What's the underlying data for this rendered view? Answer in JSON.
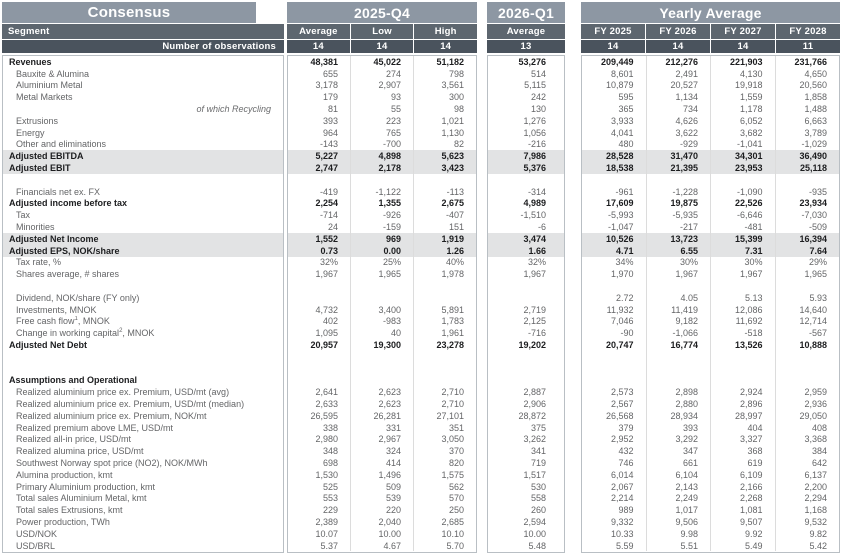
{
  "header": {
    "consensus_title": "Consensus",
    "segment_label": "Segment",
    "observations_label": "Number of observations",
    "groups": [
      {
        "title": "2025-Q4",
        "cols": [
          "Average",
          "Low",
          "High"
        ],
        "obs": [
          "14",
          "14",
          "14"
        ]
      },
      {
        "title": "2026-Q1",
        "cols": [
          "Average"
        ],
        "obs": [
          "13"
        ]
      },
      {
        "title": "Yearly Average",
        "cols": [
          "FY 2025",
          "FY 2026",
          "FY 2027",
          "FY 2028"
        ],
        "obs": [
          "14",
          "14",
          "14",
          "11"
        ]
      }
    ]
  },
  "colors": {
    "title_band": "#8d97a3",
    "sub_band": "#5d666f",
    "obs_band": "#4a535d",
    "highlight_row": "#e2e3e4",
    "panel_border": "#b9bfc4",
    "column_separator": "#dcdcdc",
    "normal_text": "#646567",
    "bold_text": "#1c1d1f"
  },
  "rows": [
    {
      "l": "Revenues",
      "s": "bold",
      "v": [
        "48,381",
        "45,022",
        "51,182",
        "53,276",
        "209,449",
        "212,276",
        "221,903",
        "231,766"
      ]
    },
    {
      "l": "Bauxite & Alumina",
      "s": "normal",
      "v": [
        "655",
        "274",
        "798",
        "514",
        "8,601",
        "2,491",
        "4,130",
        "4,650"
      ]
    },
    {
      "l": "Aluminium Metal",
      "s": "normal",
      "v": [
        "3,178",
        "2,907",
        "3,561",
        "5,115",
        "10,879",
        "20,527",
        "19,918",
        "20,560"
      ]
    },
    {
      "l": "Metal Markets",
      "s": "normal",
      "v": [
        "179",
        "93",
        "300",
        "242",
        "595",
        "1,134",
        "1,559",
        "1,858"
      ]
    },
    {
      "l": "of which Recycling",
      "s": "recycling",
      "v": [
        "81",
        "55",
        "98",
        "130",
        "365",
        "734",
        "1,178",
        "1,488"
      ]
    },
    {
      "l": "Extrusions",
      "s": "normal",
      "v": [
        "393",
        "223",
        "1,021",
        "1,276",
        "3,933",
        "4,626",
        "6,052",
        "6,663"
      ]
    },
    {
      "l": "Energy",
      "s": "normal",
      "v": [
        "964",
        "765",
        "1,130",
        "1,056",
        "4,041",
        "3,622",
        "3,682",
        "3,789"
      ]
    },
    {
      "l": "Other and eliminations",
      "s": "normal",
      "v": [
        "-143",
        "-700",
        "82",
        "-216",
        "480",
        "-929",
        "-1,041",
        "-1,029"
      ]
    },
    {
      "l": "Adjusted EBITDA",
      "s": "hl",
      "v": [
        "5,227",
        "4,898",
        "5,623",
        "7,986",
        "28,528",
        "31,470",
        "34,301",
        "36,490"
      ]
    },
    {
      "l": "Adjusted EBIT",
      "s": "hl",
      "v": [
        "2,747",
        "2,178",
        "3,423",
        "5,376",
        "18,538",
        "21,395",
        "23,953",
        "25,118"
      ]
    },
    {
      "s": "blank"
    },
    {
      "l": "Financials net ex. FX",
      "s": "normal",
      "v": [
        "-419",
        "-1,122",
        "-113",
        "-314",
        "-961",
        "-1,228",
        "-1,090",
        "-935"
      ]
    },
    {
      "l": "Adjusted income before tax",
      "s": "bold",
      "v": [
        "2,254",
        "1,355",
        "2,675",
        "4,989",
        "17,609",
        "19,875",
        "22,526",
        "23,934"
      ]
    },
    {
      "l": "Tax",
      "s": "normal",
      "v": [
        "-714",
        "-926",
        "-407",
        "-1,510",
        "-5,993",
        "-5,935",
        "-6,646",
        "-7,030"
      ]
    },
    {
      "l": "Minorities",
      "s": "normal",
      "v": [
        "24",
        "-159",
        "151",
        "-6",
        "-1,047",
        "-217",
        "-481",
        "-509"
      ]
    },
    {
      "l": "Adjusted Net Income",
      "s": "hl",
      "v": [
        "1,552",
        "969",
        "1,919",
        "3,474",
        "10,526",
        "13,723",
        "15,399",
        "16,394"
      ]
    },
    {
      "l": "Adjusted EPS, NOK/share",
      "s": "hl",
      "v": [
        "0.73",
        "0.00",
        "1.26",
        "1.66",
        "4.71",
        "6.55",
        "7.31",
        "7.64"
      ]
    },
    {
      "l": "Tax rate, %",
      "s": "normal",
      "v": [
        "32%",
        "25%",
        "40%",
        "32%",
        "34%",
        "30%",
        "30%",
        "29%"
      ]
    },
    {
      "l": "Shares average, # shares",
      "s": "normal",
      "v": [
        "1,967",
        "1,965",
        "1,978",
        "1,967",
        "1,970",
        "1,967",
        "1,967",
        "1,965"
      ]
    },
    {
      "s": "blank"
    },
    {
      "l": "Dividend, NOK/share (FY only)",
      "s": "normal",
      "v": [
        "",
        "",
        "",
        "",
        "2.72",
        "4.05",
        "5.13",
        "5.93"
      ]
    },
    {
      "l": "Investments, MNOK",
      "s": "normal",
      "v": [
        "4,732",
        "3,400",
        "5,891",
        "2,719",
        "11,932",
        "11,419",
        "12,086",
        "14,640"
      ]
    },
    {
      "l": "Free cash flow",
      "sup": "1",
      "suffix": ", MNOK",
      "s": "normal",
      "v": [
        "402",
        "-983",
        "1,783",
        "2,125",
        "7,046",
        "9,182",
        "11,692",
        "12,714"
      ]
    },
    {
      "l": "Change in working capital",
      "sup": "2",
      "suffix": ", MNOK",
      "s": "normal",
      "v": [
        "1,095",
        "40",
        "1,961",
        "-716",
        "-90",
        "-1,066",
        "-518",
        "-567"
      ]
    },
    {
      "l": "Adjusted Net Debt",
      "s": "bold",
      "v": [
        "20,957",
        "19,300",
        "23,278",
        "19,202",
        "20,747",
        "16,774",
        "13,526",
        "10,888"
      ]
    },
    {
      "s": "blank"
    },
    {
      "s": "blank"
    },
    {
      "l": "Assumptions and Operational",
      "s": "section"
    },
    {
      "l": "Realized aluminium price ex. Premium, USD/mt (avg)",
      "s": "normal",
      "v": [
        "2,641",
        "2,623",
        "2,710",
        "2,887",
        "2,573",
        "2,898",
        "2,924",
        "2,959"
      ]
    },
    {
      "l": "Realized aluminium price ex. Premium, USD/mt (median)",
      "s": "normal",
      "v": [
        "2,633",
        "2,623",
        "2,710",
        "2,906",
        "2,567",
        "2,880",
        "2,896",
        "2,936"
      ]
    },
    {
      "l": "Realized aluminium price ex. Premium, NOK/mt",
      "s": "normal",
      "v": [
        "26,595",
        "26,281",
        "27,101",
        "28,872",
        "26,568",
        "28,934",
        "28,997",
        "29,050"
      ]
    },
    {
      "l": "Realized premium above LME, USD/mt",
      "s": "normal",
      "v": [
        "338",
        "331",
        "351",
        "375",
        "379",
        "393",
        "404",
        "408"
      ]
    },
    {
      "l": "Realized all-in price, USD/mt",
      "s": "normal",
      "v": [
        "2,980",
        "2,967",
        "3,050",
        "3,262",
        "2,952",
        "3,292",
        "3,327",
        "3,368"
      ]
    },
    {
      "l": "Realized alumina price, USD/mt",
      "s": "normal",
      "v": [
        "348",
        "324",
        "370",
        "341",
        "432",
        "347",
        "368",
        "384"
      ]
    },
    {
      "l": "Southwest Norway spot price (NO2), NOK/MWh",
      "s": "normal",
      "v": [
        "698",
        "414",
        "820",
        "719",
        "746",
        "661",
        "619",
        "642"
      ]
    },
    {
      "l": "Alumina production, kmt",
      "s": "normal",
      "v": [
        "1,530",
        "1,496",
        "1,575",
        "1,517",
        "6,014",
        "6,104",
        "6,109",
        "6,137"
      ]
    },
    {
      "l": "Primary Aluminium production, kmt",
      "s": "normal",
      "v": [
        "525",
        "509",
        "562",
        "530",
        "2,067",
        "2,143",
        "2,166",
        "2,200"
      ]
    },
    {
      "l": "Total sales Aluminium Metal, kmt",
      "s": "normal",
      "v": [
        "553",
        "539",
        "570",
        "558",
        "2,214",
        "2,249",
        "2,268",
        "2,294"
      ]
    },
    {
      "l": "Total sales Extrusions, kmt",
      "s": "normal",
      "v": [
        "229",
        "220",
        "250",
        "260",
        "989",
        "1,017",
        "1,081",
        "1,168"
      ]
    },
    {
      "l": "Power production, TWh",
      "s": "normal",
      "v": [
        "2,389",
        "2,040",
        "2,685",
        "2,594",
        "9,332",
        "9,506",
        "9,507",
        "9,532"
      ]
    },
    {
      "l": "USD/NOK",
      "s": "normal",
      "v": [
        "10.07",
        "10.00",
        "10.10",
        "10.00",
        "10.33",
        "9.98",
        "9.92",
        "9.82"
      ]
    },
    {
      "l": "USD/BRL",
      "s": "normal",
      "v": [
        "5.37",
        "4.67",
        "5.70",
        "5.48",
        "5.59",
        "5.51",
        "5.49",
        "5.42"
      ]
    }
  ]
}
